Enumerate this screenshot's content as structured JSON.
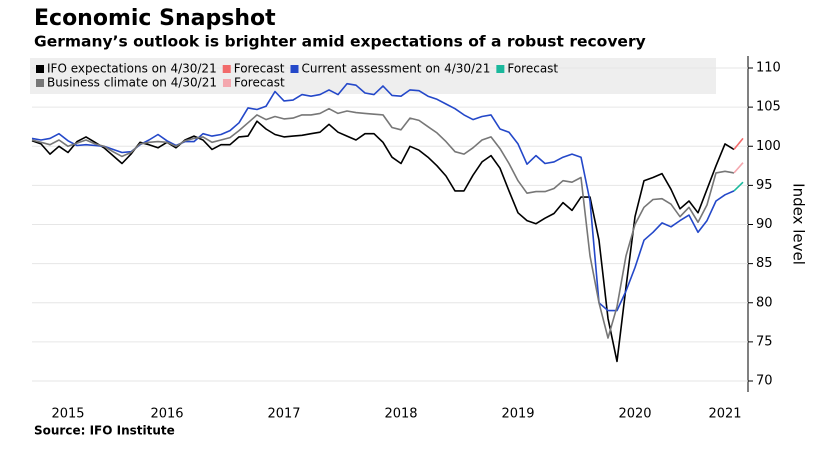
{
  "chart_data": {
    "type": "line",
    "title": "Economic Snapshot",
    "subtitle": "Germany’s outlook is brighter amid expectations of a robust recovery",
    "source": "Source: IFO Institute",
    "y_label": "Index level",
    "categories": [
      null,
      null,
      null,
      null,
      "2015",
      null,
      null,
      null,
      null,
      null,
      null,
      null,
      null,
      null,
      null,
      "2016",
      null,
      null,
      null,
      null,
      null,
      null,
      null,
      null,
      null,
      null,
      null,
      null,
      "2017",
      null,
      null,
      null,
      null,
      null,
      null,
      null,
      null,
      null,
      null,
      null,
      null,
      "2018",
      null,
      null,
      null,
      null,
      null,
      null,
      null,
      null,
      null,
      null,
      null,
      null,
      "2019",
      null,
      null,
      null,
      null,
      null,
      null,
      null,
      null,
      null,
      null,
      null,
      null,
      "2020",
      null,
      null,
      null,
      null,
      null,
      null,
      null,
      null,
      null,
      "2021",
      null,
      null
    ],
    "series": [
      {
        "name": "IFO expectations on 4/30/21",
        "color": "#000000",
        "values": [
          100.7,
          100.3,
          99,
          100,
          99.2,
          100.6,
          101.2,
          100.5,
          99.8,
          98.8,
          97.8,
          99,
          100.5,
          100.2,
          99.8,
          100.5,
          99.8,
          100.8,
          101.3,
          100.8,
          99.6,
          100.2,
          100.2,
          101.2,
          101.3,
          103.2,
          102.2,
          101.5,
          101.2,
          101.3,
          101.4,
          101.6,
          101.8,
          102.8,
          101.8,
          101.3,
          100.8,
          101.6,
          101.6,
          100.5,
          98.6,
          97.8,
          100,
          99.5,
          98.6,
          97.5,
          96.2,
          94.3,
          94.3,
          96.3,
          98,
          98.8,
          97.2,
          94.3,
          91.5,
          90.5,
          90.1,
          90.8,
          91.4,
          92.8,
          91.8,
          93.5,
          93.5,
          88,
          78,
          72.5,
          82,
          91,
          95.6,
          96,
          96.5,
          94.5,
          92,
          93,
          91.5,
          94.5,
          97.5,
          100.3,
          99.6,
          null
        ]
      },
      {
        "name": "Forecast",
        "color": "#f26b6b",
        "values": [
          null,
          null,
          null,
          null,
          null,
          null,
          null,
          null,
          null,
          null,
          null,
          null,
          null,
          null,
          null,
          null,
          null,
          null,
          null,
          null,
          null,
          null,
          null,
          null,
          null,
          null,
          null,
          null,
          null,
          null,
          null,
          null,
          null,
          null,
          null,
          null,
          null,
          null,
          null,
          null,
          null,
          null,
          null,
          null,
          null,
          null,
          null,
          null,
          null,
          null,
          null,
          null,
          null,
          null,
          null,
          null,
          null,
          null,
          null,
          null,
          null,
          null,
          null,
          null,
          null,
          null,
          null,
          null,
          null,
          null,
          null,
          null,
          null,
          null,
          null,
          null,
          null,
          null,
          99.6,
          101
        ]
      },
      {
        "name": "Current assessment on 4/30/21",
        "color": "#2448c9",
        "values": [
          101,
          100.8,
          101,
          101.6,
          100.7,
          100.1,
          100.2,
          100.1,
          100,
          99.6,
          99.2,
          99.3,
          100.2,
          100.8,
          101.5,
          100.7,
          100.1,
          100.6,
          100.6,
          101.6,
          101.3,
          101.5,
          102,
          103,
          104.9,
          104.7,
          105.1,
          107,
          105.8,
          105.9,
          106.6,
          106.4,
          106.6,
          107.2,
          106.6,
          108,
          107.8,
          106.8,
          106.6,
          107.7,
          106.5,
          106.4,
          107.2,
          107.1,
          106.4,
          106,
          105.4,
          104.8,
          104,
          103.4,
          103.8,
          104,
          102.2,
          101.8,
          100.3,
          97.7,
          98.8,
          97.8,
          98,
          98.6,
          99,
          98.6,
          93,
          80,
          79,
          79,
          81.5,
          84.5,
          88,
          89,
          90.2,
          89.7,
          90.5,
          91.2,
          89,
          90.5,
          93,
          93.8,
          94.3,
          null
        ]
      },
      {
        "name": "Forecast",
        "color": "#1ab89c",
        "values": [
          null,
          null,
          null,
          null,
          null,
          null,
          null,
          null,
          null,
          null,
          null,
          null,
          null,
          null,
          null,
          null,
          null,
          null,
          null,
          null,
          null,
          null,
          null,
          null,
          null,
          null,
          null,
          null,
          null,
          null,
          null,
          null,
          null,
          null,
          null,
          null,
          null,
          null,
          null,
          null,
          null,
          null,
          null,
          null,
          null,
          null,
          null,
          null,
          null,
          null,
          null,
          null,
          null,
          null,
          null,
          null,
          null,
          null,
          null,
          null,
          null,
          null,
          null,
          null,
          null,
          null,
          null,
          null,
          null,
          null,
          null,
          null,
          null,
          null,
          null,
          null,
          null,
          null,
          94.3,
          95.4
        ]
      },
      {
        "name": "Business climate on 4/30/21",
        "color": "#777777",
        "values": [
          100.8,
          100.5,
          100.2,
          100.8,
          100,
          100.4,
          100.8,
          100.3,
          100,
          99.3,
          98.7,
          99.2,
          100.3,
          100.5,
          100.6,
          100.5,
          100,
          100.7,
          101,
          101.2,
          100.5,
          100.8,
          101.1,
          102,
          103,
          104,
          103.4,
          103.8,
          103.5,
          103.6,
          104,
          104,
          104.2,
          104.8,
          104.2,
          104.5,
          104.3,
          104.2,
          104.1,
          104,
          102.4,
          102.1,
          103.6,
          103.3,
          102.5,
          101.7,
          100.6,
          99.3,
          99,
          99.8,
          100.8,
          101.2,
          99.7,
          97.8,
          95.6,
          94,
          94.2,
          94.2,
          94.6,
          95.6,
          95.4,
          96,
          86,
          80,
          75.5,
          79.5,
          86,
          90,
          92.2,
          93.2,
          93.3,
          92.6,
          91,
          92.2,
          90.3,
          92.5,
          96.6,
          96.8,
          96.6,
          null
        ]
      },
      {
        "name": "Forecast",
        "color": "#f4a7ae",
        "values": [
          null,
          null,
          null,
          null,
          null,
          null,
          null,
          null,
          null,
          null,
          null,
          null,
          null,
          null,
          null,
          null,
          null,
          null,
          null,
          null,
          null,
          null,
          null,
          null,
          null,
          null,
          null,
          null,
          null,
          null,
          null,
          null,
          null,
          null,
          null,
          null,
          null,
          null,
          null,
          null,
          null,
          null,
          null,
          null,
          null,
          null,
          null,
          null,
          null,
          null,
          null,
          null,
          null,
          null,
          null,
          null,
          null,
          null,
          null,
          null,
          null,
          null,
          null,
          null,
          null,
          null,
          null,
          null,
          null,
          null,
          null,
          null,
          null,
          null,
          null,
          null,
          null,
          null,
          96.6,
          97.9
        ]
      }
    ],
    "ylim": [
      70,
      110
    ],
    "yticks": [
      70,
      75,
      80,
      85,
      90,
      95,
      100,
      105,
      110
    ],
    "grid": true
  }
}
